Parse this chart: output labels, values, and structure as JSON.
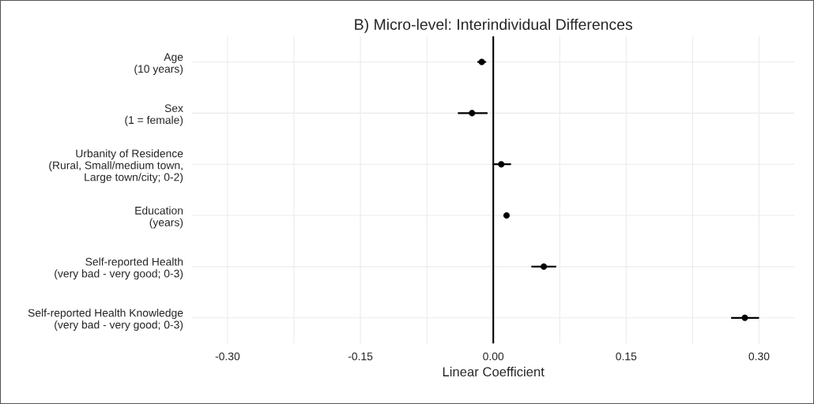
{
  "chart_data": {
    "type": "scatter",
    "title": "B) Micro-level: Interindividual Differences",
    "xlabel": "Linear Coefficient",
    "categories": [
      "Age\n(10 years)",
      "Sex\n(1 = female)",
      "Urbanity of Residence\n(Rural, Small/medium town,\nLarge town/city; 0-2)",
      "Education\n(years)",
      "Self-reported Health\n(very bad - very good; 0-3)",
      "Self-reported Health Knowledge\n(very bad - very good; 0-3)"
    ],
    "orientation": "horizontal",
    "series": [
      {
        "color": "#000000",
        "values": [
          -0.013,
          -0.024,
          0.009,
          0.015,
          0.057,
          0.284
        ],
        "errors": [
          [
            -0.018,
            -0.008
          ],
          [
            -0.04,
            -0.0065
          ],
          [
            -0.001,
            0.02
          ],
          null,
          [
            0.043,
            0.071
          ],
          [
            0.2685,
            0.3
          ]
        ]
      }
    ],
    "xlim": [
      -0.34,
      0.34
    ],
    "xticks": [
      {
        "value": -0.3,
        "label": "-0.30"
      },
      {
        "value": -0.225,
        "label": null
      },
      {
        "value": -0.15,
        "label": "-0.15"
      },
      {
        "value": -0.075,
        "label": null
      },
      {
        "value": 0,
        "label": "0.00"
      },
      {
        "value": 0.075,
        "label": null
      },
      {
        "value": 0.15,
        "label": "0.15"
      },
      {
        "value": 0.225,
        "label": null
      },
      {
        "value": 0.3,
        "label": "0.30"
      }
    ],
    "ref_lines": [
      {
        "axis": "x",
        "value": 0,
        "color": "#000000"
      }
    ],
    "grid": true,
    "marker": "circle"
  }
}
